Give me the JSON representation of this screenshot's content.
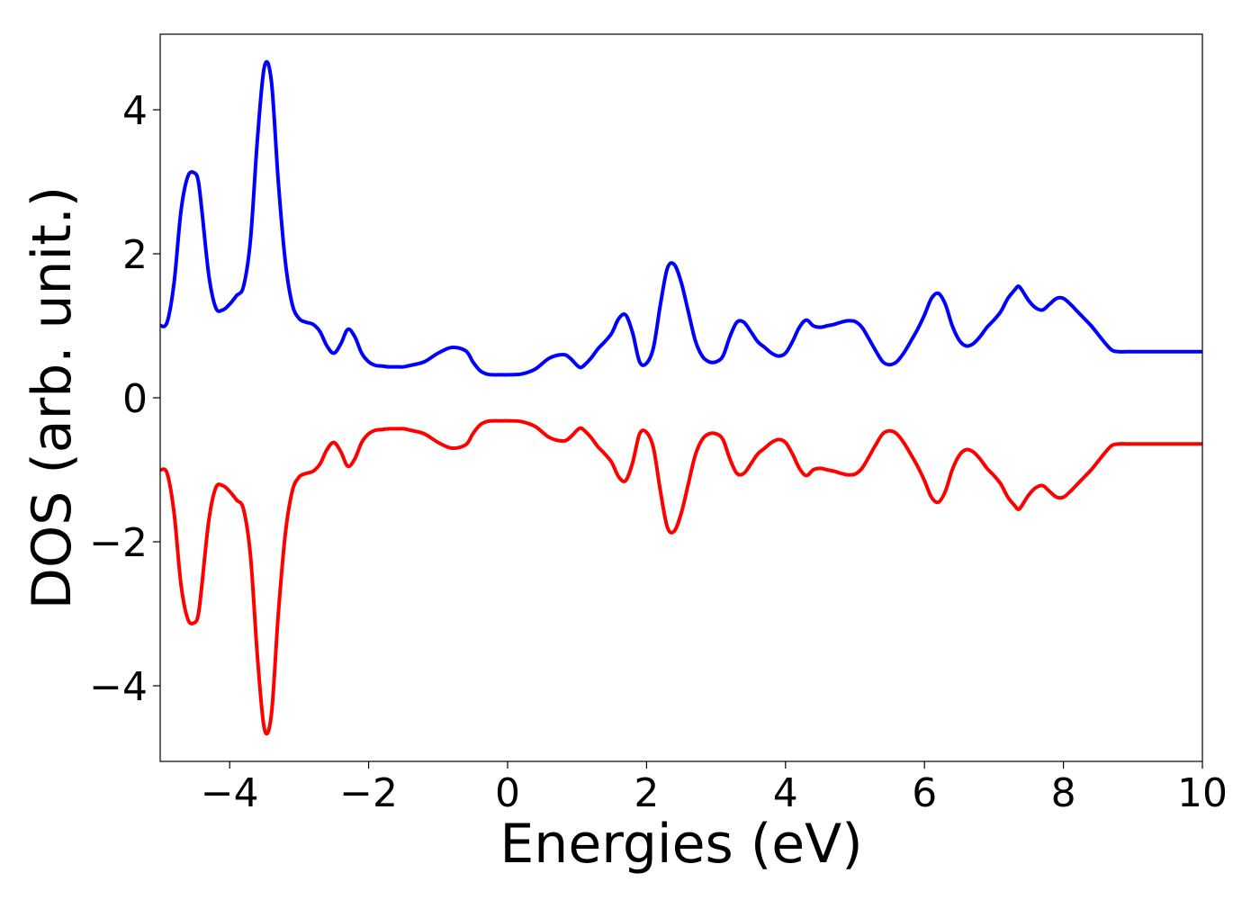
{
  "chart_data": {
    "type": "line",
    "title": "",
    "xlabel": "Energies (eV)",
    "ylabel": "DOS (arb. unit.)",
    "xlim": [
      -5,
      10
    ],
    "ylim": [
      -5.05,
      5.05
    ],
    "xticks": [
      -4,
      -2,
      0,
      2,
      4,
      6,
      8,
      10
    ],
    "yticks": [
      -4,
      -2,
      0,
      2,
      4
    ],
    "grid": false,
    "legend": "none",
    "colors": {
      "up": "#0000ff",
      "down": "#ff0000"
    },
    "series": [
      {
        "color": "#0000ff",
        "x": [
          -5.0,
          -4.9,
          -4.8,
          -4.7,
          -4.6,
          -4.5,
          -4.45,
          -4.4,
          -4.3,
          -4.2,
          -4.1,
          -4.0,
          -3.9,
          -3.8,
          -3.7,
          -3.6,
          -3.5,
          -3.4,
          -3.3,
          -3.2,
          -3.1,
          -3.0,
          -2.9,
          -2.8,
          -2.7,
          -2.6,
          -2.5,
          -2.4,
          -2.3,
          -2.2,
          -2.1,
          -2.0,
          -1.9,
          -1.8,
          -1.7,
          -1.6,
          -1.5,
          -1.4,
          -1.2,
          -1.0,
          -0.8,
          -0.6,
          -0.5,
          -0.4,
          -0.3,
          -0.2,
          -0.1,
          0.0,
          0.2,
          0.4,
          0.6,
          0.8,
          0.9,
          1.0,
          1.05,
          1.1,
          1.2,
          1.3,
          1.4,
          1.5,
          1.6,
          1.7,
          1.8,
          1.9,
          2.0,
          2.1,
          2.2,
          2.3,
          2.4,
          2.5,
          2.6,
          2.7,
          2.8,
          2.9,
          3.0,
          3.1,
          3.2,
          3.3,
          3.4,
          3.5,
          3.6,
          3.7,
          3.8,
          3.9,
          4.0,
          4.1,
          4.2,
          4.3,
          4.4,
          4.5,
          4.6,
          4.7,
          4.8,
          4.9,
          5.0,
          5.1,
          5.2,
          5.3,
          5.4,
          5.5,
          5.6,
          5.7,
          5.8,
          5.9,
          6.0,
          6.1,
          6.2,
          6.3,
          6.4,
          6.5,
          6.6,
          6.7,
          6.8,
          6.9,
          7.0,
          7.1,
          7.2,
          7.3,
          7.35,
          7.4,
          7.5,
          7.6,
          7.7,
          7.8,
          7.9,
          8.0,
          8.1,
          8.2,
          8.3,
          8.4,
          8.5,
          8.6,
          8.7,
          8.8,
          8.9,
          9.0,
          9.05,
          9.1,
          9.2,
          9.3,
          9.4,
          9.5,
          9.6,
          9.7,
          9.8,
          9.9,
          10.0
        ],
        "y": [
          1.0,
          1.05,
          1.6,
          2.6,
          3.08,
          3.12,
          3.0,
          2.6,
          1.7,
          1.25,
          1.22,
          1.3,
          1.42,
          1.55,
          2.2,
          3.6,
          4.6,
          4.4,
          3.0,
          1.9,
          1.3,
          1.1,
          1.05,
          1.02,
          0.92,
          0.72,
          0.62,
          0.75,
          0.95,
          0.85,
          0.62,
          0.5,
          0.45,
          0.44,
          0.43,
          0.43,
          0.43,
          0.45,
          0.5,
          0.62,
          0.7,
          0.65,
          0.5,
          0.38,
          0.33,
          0.32,
          0.32,
          0.32,
          0.33,
          0.4,
          0.55,
          0.6,
          0.55,
          0.45,
          0.42,
          0.45,
          0.55,
          0.68,
          0.78,
          0.9,
          1.1,
          1.15,
          0.9,
          0.5,
          0.48,
          0.7,
          1.3,
          1.8,
          1.85,
          1.6,
          1.2,
          0.8,
          0.58,
          0.5,
          0.5,
          0.58,
          0.85,
          1.05,
          1.05,
          0.92,
          0.78,
          0.7,
          0.62,
          0.58,
          0.62,
          0.78,
          0.98,
          1.08,
          1.0,
          0.98,
          1.0,
          1.02,
          1.05,
          1.07,
          1.06,
          0.98,
          0.82,
          0.65,
          0.5,
          0.46,
          0.5,
          0.62,
          0.78,
          0.95,
          1.15,
          1.38,
          1.45,
          1.3,
          1.0,
          0.8,
          0.72,
          0.75,
          0.85,
          0.98,
          1.08,
          1.2,
          1.38,
          1.5,
          1.55,
          1.5,
          1.35,
          1.25,
          1.22,
          1.3,
          1.38,
          1.38,
          1.3,
          1.2,
          1.1,
          1.0,
          0.88,
          0.76,
          0.66,
          0.64,
          0.64,
          0.64,
          0.64,
          0.64,
          0.64,
          0.64,
          0.64,
          0.64,
          0.64,
          0.64,
          0.64,
          0.64,
          0.64
        ]
      },
      {
        "color": "#ff0000",
        "x": [
          -5.0,
          -4.9,
          -4.8,
          -4.7,
          -4.6,
          -4.5,
          -4.45,
          -4.4,
          -4.3,
          -4.2,
          -4.1,
          -4.0,
          -3.9,
          -3.8,
          -3.7,
          -3.6,
          -3.5,
          -3.4,
          -3.3,
          -3.2,
          -3.1,
          -3.0,
          -2.9,
          -2.8,
          -2.7,
          -2.6,
          -2.5,
          -2.4,
          -2.3,
          -2.2,
          -2.1,
          -2.0,
          -1.9,
          -1.8,
          -1.7,
          -1.6,
          -1.5,
          -1.4,
          -1.2,
          -1.0,
          -0.8,
          -0.6,
          -0.5,
          -0.4,
          -0.3,
          -0.2,
          -0.1,
          0.0,
          0.2,
          0.4,
          0.6,
          0.8,
          0.9,
          1.0,
          1.05,
          1.1,
          1.2,
          1.3,
          1.4,
          1.5,
          1.6,
          1.7,
          1.8,
          1.9,
          2.0,
          2.1,
          2.2,
          2.3,
          2.4,
          2.5,
          2.6,
          2.7,
          2.8,
          2.9,
          3.0,
          3.1,
          3.2,
          3.3,
          3.4,
          3.5,
          3.6,
          3.7,
          3.8,
          3.9,
          4.0,
          4.1,
          4.2,
          4.3,
          4.4,
          4.5,
          4.6,
          4.7,
          4.8,
          4.9,
          5.0,
          5.1,
          5.2,
          5.3,
          5.4,
          5.5,
          5.6,
          5.7,
          5.8,
          5.9,
          6.0,
          6.1,
          6.2,
          6.3,
          6.4,
          6.5,
          6.6,
          6.7,
          6.8,
          6.9,
          7.0,
          7.1,
          7.2,
          7.3,
          7.35,
          7.4,
          7.5,
          7.6,
          7.7,
          7.8,
          7.9,
          8.0,
          8.1,
          8.2,
          8.3,
          8.4,
          8.5,
          8.6,
          8.7,
          8.8,
          8.9,
          9.0,
          9.05,
          9.1,
          9.2,
          9.3,
          9.4,
          9.5,
          9.6,
          9.7,
          9.8,
          9.9,
          10.0
        ],
        "y": [
          -1.0,
          -1.05,
          -1.6,
          -2.6,
          -3.08,
          -3.12,
          -3.0,
          -2.6,
          -1.7,
          -1.25,
          -1.22,
          -1.3,
          -1.42,
          -1.55,
          -2.2,
          -3.6,
          -4.6,
          -4.4,
          -3.0,
          -1.9,
          -1.3,
          -1.1,
          -1.05,
          -1.02,
          -0.92,
          -0.72,
          -0.62,
          -0.75,
          -0.95,
          -0.85,
          -0.62,
          -0.5,
          -0.45,
          -0.44,
          -0.43,
          -0.43,
          -0.43,
          -0.45,
          -0.5,
          -0.62,
          -0.7,
          -0.65,
          -0.5,
          -0.38,
          -0.33,
          -0.32,
          -0.32,
          -0.32,
          -0.33,
          -0.4,
          -0.55,
          -0.6,
          -0.55,
          -0.45,
          -0.42,
          -0.45,
          -0.55,
          -0.68,
          -0.78,
          -0.9,
          -1.1,
          -1.15,
          -0.9,
          -0.5,
          -0.48,
          -0.7,
          -1.3,
          -1.8,
          -1.85,
          -1.6,
          -1.2,
          -0.8,
          -0.58,
          -0.5,
          -0.5,
          -0.58,
          -0.85,
          -1.05,
          -1.05,
          -0.92,
          -0.78,
          -0.7,
          -0.62,
          -0.58,
          -0.62,
          -0.78,
          -0.98,
          -1.08,
          -1.0,
          -0.98,
          -1.0,
          -1.02,
          -1.05,
          -1.07,
          -1.06,
          -0.98,
          -0.82,
          -0.65,
          -0.5,
          -0.46,
          -0.5,
          -0.62,
          -0.78,
          -0.95,
          -1.15,
          -1.38,
          -1.45,
          -1.3,
          -1.0,
          -0.8,
          -0.72,
          -0.75,
          -0.85,
          -0.98,
          -1.08,
          -1.2,
          -1.38,
          -1.5,
          -1.55,
          -1.5,
          -1.35,
          -1.25,
          -1.22,
          -1.3,
          -1.38,
          -1.38,
          -1.3,
          -1.2,
          -1.1,
          -1.0,
          -0.88,
          -0.76,
          -0.66,
          -0.64,
          -0.64,
          -0.64,
          -0.64,
          -0.64,
          -0.64,
          -0.64,
          -0.64,
          -0.64,
          -0.64,
          -0.64,
          -0.64,
          -0.64,
          -0.64
        ]
      }
    ]
  }
}
